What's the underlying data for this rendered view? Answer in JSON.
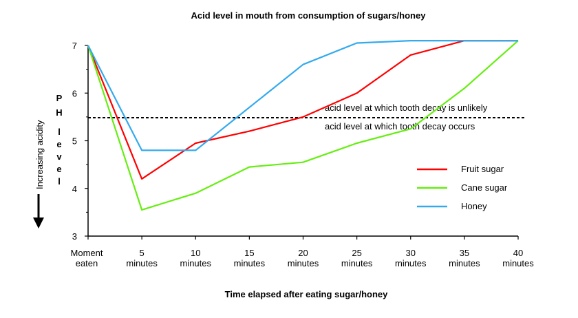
{
  "chart_data": {
    "type": "line",
    "title": "Acid level in mouth from consumption of sugars/honey",
    "xlabel": "Time elapsed after eating sugar/honey",
    "ylabel": "P H  l e v e l",
    "side_label": "Increasing acidity",
    "x": [
      0,
      5,
      10,
      15,
      20,
      25,
      30,
      35,
      40
    ],
    "x_tick_labels": [
      [
        "Moment",
        "eaten"
      ],
      [
        "5",
        "minutes"
      ],
      [
        "10",
        "minutes"
      ],
      [
        "15",
        "minutes"
      ],
      [
        "20",
        "minutes"
      ],
      [
        "25",
        "minutes"
      ],
      [
        "30",
        "minutes"
      ],
      [
        "35",
        "minutes"
      ],
      [
        "40",
        "minutes"
      ]
    ],
    "ylim": [
      3,
      7
    ],
    "y_ticks": [
      3,
      4,
      5,
      6,
      7
    ],
    "series": [
      {
        "name": "Fruit sugar",
        "color": "#ff0000",
        "values": [
          7.0,
          4.2,
          4.95,
          5.2,
          5.5,
          6.0,
          6.8,
          7.1,
          7.1
        ]
      },
      {
        "name": "Cane sugar",
        "color": "#66ee11",
        "values": [
          7.0,
          3.55,
          3.9,
          4.45,
          4.55,
          4.95,
          5.25,
          6.1,
          7.1
        ]
      },
      {
        "name": "Honey",
        "color": "#33aaee",
        "values": [
          7.0,
          4.8,
          4.8,
          5.7,
          6.6,
          7.05,
          7.1,
          7.1,
          7.1
        ]
      }
    ],
    "threshold": {
      "value": 5.5,
      "label_above": "acid level at which tooth decay is unlikely",
      "label_below": "acid level at which tooth decay occurs"
    },
    "legend_position": "right",
    "grid": false
  }
}
